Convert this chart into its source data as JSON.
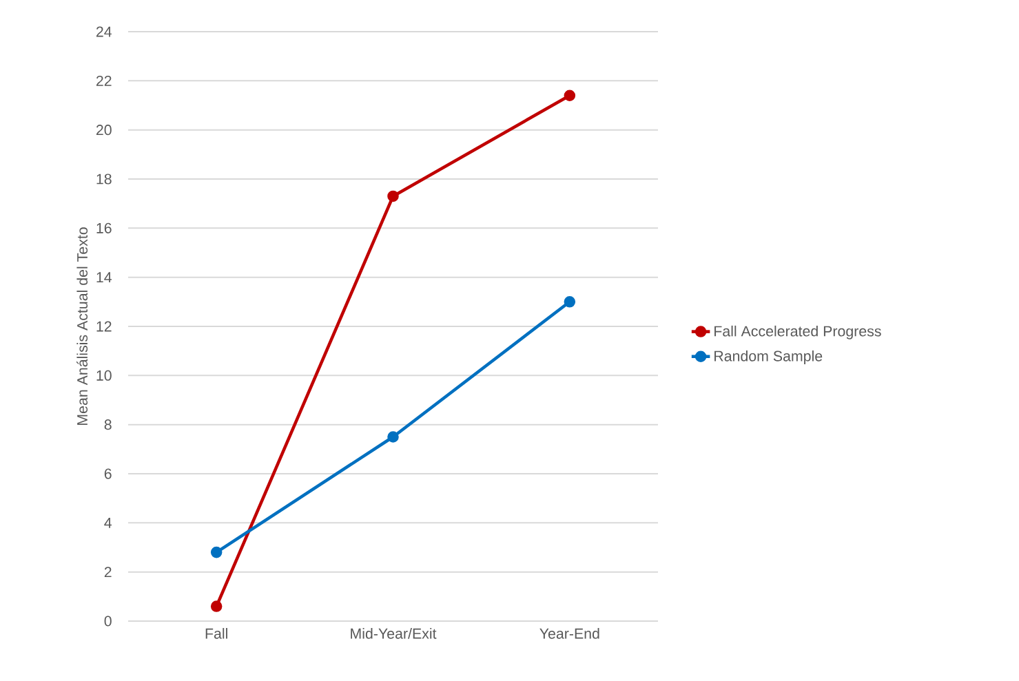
{
  "chart_data": {
    "type": "line",
    "ylabel": "Mean Análisis Actual del Texto",
    "categories": [
      "Fall",
      "Mid-Year/Exit",
      "Year-End"
    ],
    "series": [
      {
        "name": "Fall Accelerated Progress",
        "color": "#c00000",
        "values": [
          0.6,
          17.3,
          21.4
        ]
      },
      {
        "name": "Random Sample",
        "color": "#0070c0",
        "values": [
          2.8,
          7.5,
          13.0
        ]
      }
    ],
    "ylim": [
      0,
      24
    ],
    "yticks": [
      0,
      2,
      4,
      6,
      8,
      10,
      12,
      14,
      16,
      18,
      20,
      22,
      24
    ],
    "grid": "y",
    "legend": "right",
    "marker": "circle",
    "line_style": "solid"
  }
}
